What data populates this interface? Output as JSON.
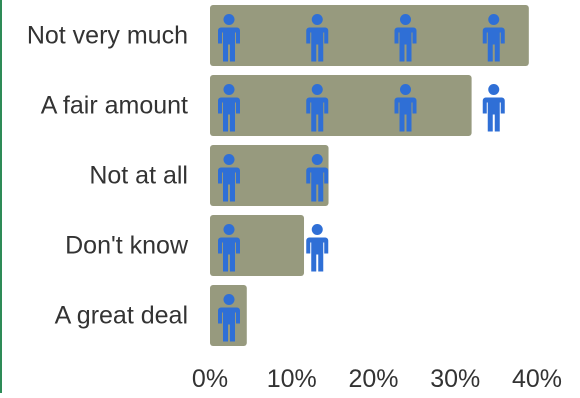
{
  "chart_data": {
    "type": "bar",
    "orientation": "horizontal",
    "title": "",
    "xlabel": "",
    "ylabel": "",
    "categories": [
      "Not very much",
      "A fair amount",
      "Not at all",
      "Don't know",
      "A great deal"
    ],
    "values": [
      39,
      32,
      14.5,
      11.5,
      4.5
    ],
    "xlim": [
      0,
      40
    ],
    "ticks": [
      0,
      10,
      20,
      30,
      40
    ],
    "tick_labels": [
      "0%",
      "10%",
      "20%",
      "30%",
      "40%"
    ],
    "grid": false,
    "legend": "none",
    "icon_unit": "person-icon",
    "colors": {
      "bar": "#979a7e",
      "icon": "#2f6fd6",
      "label": "#333333",
      "left_rule": "#2e8b57"
    }
  }
}
